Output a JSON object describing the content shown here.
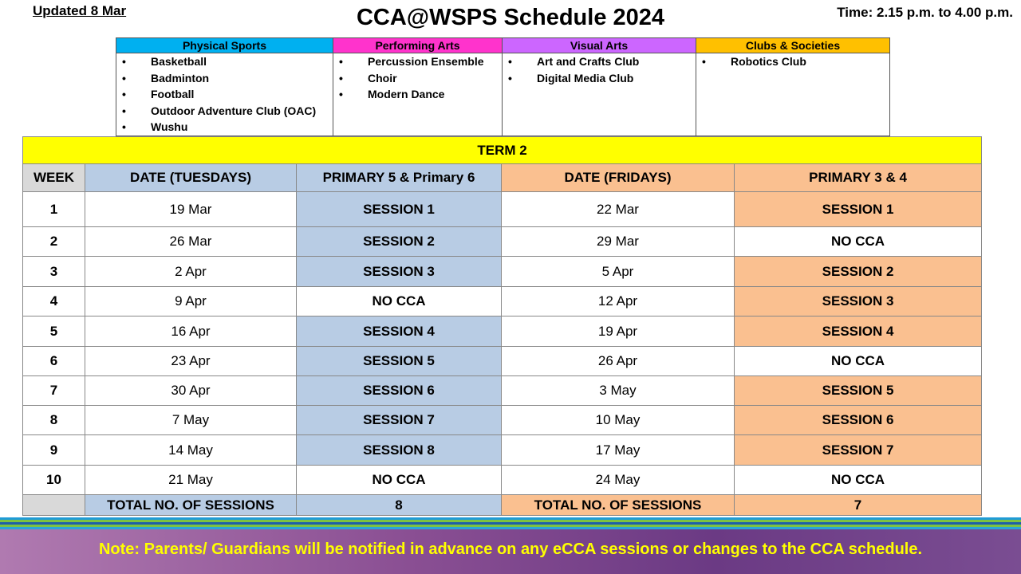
{
  "header": {
    "updated": "Updated 8 Mar",
    "title": "CCA@WSPS Schedule 2024",
    "time": "Time: 2.15 p.m. to 4.00 p.m."
  },
  "categories": [
    {
      "name": "Physical Sports",
      "color": "#00b0f0",
      "items": [
        "Basketball",
        "Badminton",
        "Football",
        "Outdoor Adventure Club (OAC)",
        "Wushu"
      ]
    },
    {
      "name": "Performing Arts",
      "color": "#ff33cc",
      "items": [
        "Percussion Ensemble",
        "Choir",
        "Modern Dance"
      ]
    },
    {
      "name": "Visual Arts",
      "color": "#cc66ff",
      "items": [
        "Art and Crafts Club",
        "Digital Media Club"
      ]
    },
    {
      "name": "Clubs & Societies",
      "color": "#ffc000",
      "items": [
        "Robotics Club"
      ]
    }
  ],
  "schedule": {
    "term": "TERM 2",
    "headers": [
      "WEEK",
      "DATE (TUESDAYS)",
      "PRIMARY 5 & Primary 6",
      "DATE (FRIDAYS)",
      "PRIMARY 3 & 4"
    ],
    "rows": [
      {
        "week": "1",
        "tue": "19 Mar",
        "p56": "SESSION 1",
        "fri": "22 Mar",
        "p34": "SESSION 1"
      },
      {
        "week": "2",
        "tue": "26 Mar",
        "p56": "SESSION 2",
        "fri": "29 Mar",
        "p34": "NO CCA"
      },
      {
        "week": "3",
        "tue": "2 Apr",
        "p56": "SESSION 3",
        "fri": "5 Apr",
        "p34": "SESSION 2"
      },
      {
        "week": "4",
        "tue": "9 Apr",
        "p56": "NO CCA",
        "fri": "12 Apr",
        "p34": "SESSION 3"
      },
      {
        "week": "5",
        "tue": "16 Apr",
        "p56": "SESSION 4",
        "fri": "19 Apr",
        "p34": "SESSION 4"
      },
      {
        "week": "6",
        "tue": "23 Apr",
        "p56": "SESSION 5",
        "fri": "26 Apr",
        "p34": "NO CCA"
      },
      {
        "week": "7",
        "tue": "30 Apr",
        "p56": "SESSION 6",
        "fri": "3 May",
        "p34": "SESSION 5"
      },
      {
        "week": "8",
        "tue": "7 May",
        "p56": "SESSION 7",
        "fri": "10 May",
        "p34": "SESSION 6"
      },
      {
        "week": "9",
        "tue": "14 May",
        "p56": "SESSION 8",
        "fri": "17 May",
        "p34": "SESSION 7"
      },
      {
        "week": "10",
        "tue": "21 May",
        "p56": "NO CCA",
        "fri": "24 May",
        "p34": "NO CCA"
      }
    ],
    "total_label": "TOTAL NO. OF SESSIONS",
    "total_p56": "8",
    "total_p34": "7"
  },
  "colors": {
    "term_bg": "#ffff00",
    "p56_bg": "#b8cce4",
    "p34_bg": "#fac090",
    "week_header_bg": "#d9d9d9",
    "note_text": "#ffff00"
  },
  "note": "Note: Parents/ Guardians will be notified in advance on any eCCA sessions or changes to the CCA schedule."
}
